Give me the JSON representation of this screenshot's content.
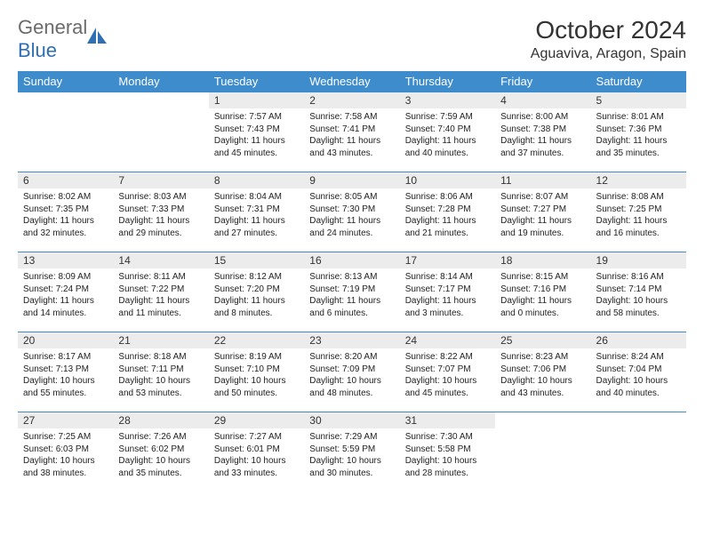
{
  "logo": {
    "text1": "General",
    "text2": "Blue"
  },
  "title": "October 2024",
  "location": "Aguaviva, Aragon, Spain",
  "header_bg": "#3e8ccc",
  "weekday_text_color": "#ffffff",
  "daynum_bg": "#ececec",
  "border_color": "#3e8ccc",
  "body_font_size": 10,
  "weekdays": [
    "Sunday",
    "Monday",
    "Tuesday",
    "Wednesday",
    "Thursday",
    "Friday",
    "Saturday"
  ],
  "weeks": [
    [
      null,
      null,
      {
        "n": "1",
        "sunrise": "7:57 AM",
        "sunset": "7:43 PM",
        "daylight": "11 hours and 45 minutes."
      },
      {
        "n": "2",
        "sunrise": "7:58 AM",
        "sunset": "7:41 PM",
        "daylight": "11 hours and 43 minutes."
      },
      {
        "n": "3",
        "sunrise": "7:59 AM",
        "sunset": "7:40 PM",
        "daylight": "11 hours and 40 minutes."
      },
      {
        "n": "4",
        "sunrise": "8:00 AM",
        "sunset": "7:38 PM",
        "daylight": "11 hours and 37 minutes."
      },
      {
        "n": "5",
        "sunrise": "8:01 AM",
        "sunset": "7:36 PM",
        "daylight": "11 hours and 35 minutes."
      }
    ],
    [
      {
        "n": "6",
        "sunrise": "8:02 AM",
        "sunset": "7:35 PM",
        "daylight": "11 hours and 32 minutes."
      },
      {
        "n": "7",
        "sunrise": "8:03 AM",
        "sunset": "7:33 PM",
        "daylight": "11 hours and 29 minutes."
      },
      {
        "n": "8",
        "sunrise": "8:04 AM",
        "sunset": "7:31 PM",
        "daylight": "11 hours and 27 minutes."
      },
      {
        "n": "9",
        "sunrise": "8:05 AM",
        "sunset": "7:30 PM",
        "daylight": "11 hours and 24 minutes."
      },
      {
        "n": "10",
        "sunrise": "8:06 AM",
        "sunset": "7:28 PM",
        "daylight": "11 hours and 21 minutes."
      },
      {
        "n": "11",
        "sunrise": "8:07 AM",
        "sunset": "7:27 PM",
        "daylight": "11 hours and 19 minutes."
      },
      {
        "n": "12",
        "sunrise": "8:08 AM",
        "sunset": "7:25 PM",
        "daylight": "11 hours and 16 minutes."
      }
    ],
    [
      {
        "n": "13",
        "sunrise": "8:09 AM",
        "sunset": "7:24 PM",
        "daylight": "11 hours and 14 minutes."
      },
      {
        "n": "14",
        "sunrise": "8:11 AM",
        "sunset": "7:22 PM",
        "daylight": "11 hours and 11 minutes."
      },
      {
        "n": "15",
        "sunrise": "8:12 AM",
        "sunset": "7:20 PM",
        "daylight": "11 hours and 8 minutes."
      },
      {
        "n": "16",
        "sunrise": "8:13 AM",
        "sunset": "7:19 PM",
        "daylight": "11 hours and 6 minutes."
      },
      {
        "n": "17",
        "sunrise": "8:14 AM",
        "sunset": "7:17 PM",
        "daylight": "11 hours and 3 minutes."
      },
      {
        "n": "18",
        "sunrise": "8:15 AM",
        "sunset": "7:16 PM",
        "daylight": "11 hours and 0 minutes."
      },
      {
        "n": "19",
        "sunrise": "8:16 AM",
        "sunset": "7:14 PM",
        "daylight": "10 hours and 58 minutes."
      }
    ],
    [
      {
        "n": "20",
        "sunrise": "8:17 AM",
        "sunset": "7:13 PM",
        "daylight": "10 hours and 55 minutes."
      },
      {
        "n": "21",
        "sunrise": "8:18 AM",
        "sunset": "7:11 PM",
        "daylight": "10 hours and 53 minutes."
      },
      {
        "n": "22",
        "sunrise": "8:19 AM",
        "sunset": "7:10 PM",
        "daylight": "10 hours and 50 minutes."
      },
      {
        "n": "23",
        "sunrise": "8:20 AM",
        "sunset": "7:09 PM",
        "daylight": "10 hours and 48 minutes."
      },
      {
        "n": "24",
        "sunrise": "8:22 AM",
        "sunset": "7:07 PM",
        "daylight": "10 hours and 45 minutes."
      },
      {
        "n": "25",
        "sunrise": "8:23 AM",
        "sunset": "7:06 PM",
        "daylight": "10 hours and 43 minutes."
      },
      {
        "n": "26",
        "sunrise": "8:24 AM",
        "sunset": "7:04 PM",
        "daylight": "10 hours and 40 minutes."
      }
    ],
    [
      {
        "n": "27",
        "sunrise": "7:25 AM",
        "sunset": "6:03 PM",
        "daylight": "10 hours and 38 minutes."
      },
      {
        "n": "28",
        "sunrise": "7:26 AM",
        "sunset": "6:02 PM",
        "daylight": "10 hours and 35 minutes."
      },
      {
        "n": "29",
        "sunrise": "7:27 AM",
        "sunset": "6:01 PM",
        "daylight": "10 hours and 33 minutes."
      },
      {
        "n": "30",
        "sunrise": "7:29 AM",
        "sunset": "5:59 PM",
        "daylight": "10 hours and 30 minutes."
      },
      {
        "n": "31",
        "sunrise": "7:30 AM",
        "sunset": "5:58 PM",
        "daylight": "10 hours and 28 minutes."
      },
      null,
      null
    ]
  ]
}
